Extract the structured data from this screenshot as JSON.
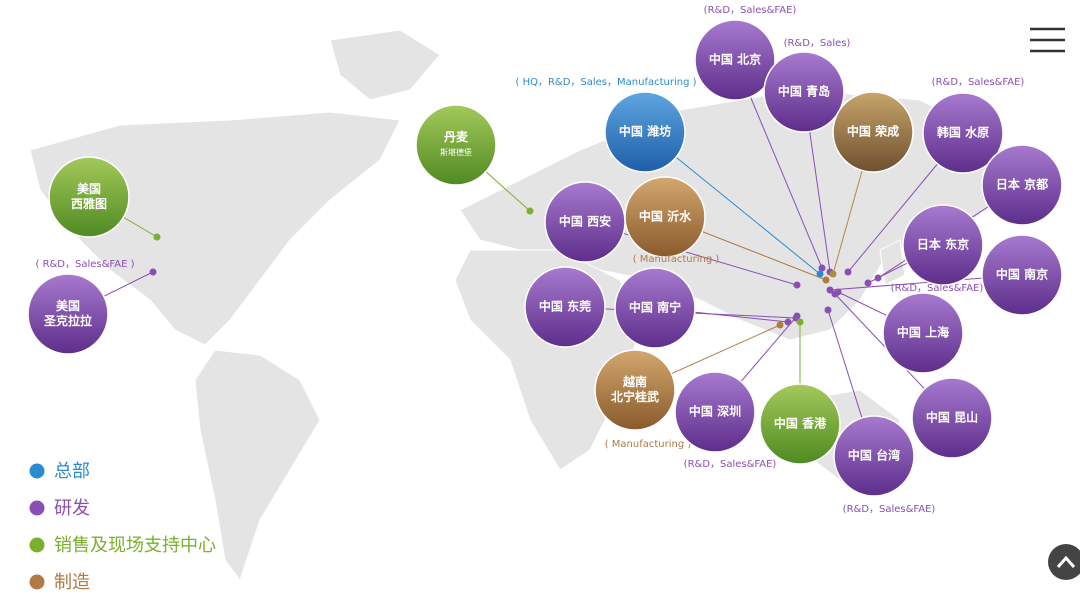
{
  "locations": [
    {
      "lines": [
        "中国 北京"
      ],
      "note": "(R&D，Sales&FAE)"
    },
    {
      "lines": [
        "中国 青岛"
      ],
      "note": "(R&D，Sales)"
    },
    {
      "lines": [
        "中国 潍坊"
      ],
      "note": "( HQ，R&D，Sales，Manufacturing )"
    },
    {
      "lines": [
        "中国 荣成"
      ]
    },
    {
      "lines": [
        "韩国 水原"
      ],
      "note": "(R&D，Sales&FAE)"
    },
    {
      "lines": [
        "日本 京都"
      ]
    },
    {
      "lines": [
        "丹麦",
        "斯堪德堡"
      ]
    },
    {
      "lines": [
        "美国",
        "西雅图"
      ]
    },
    {
      "lines": [
        "美国",
        "圣克拉拉"
      ],
      "note": "( R&D，Sales&FAE )"
    },
    {
      "lines": [
        "中国 西安"
      ]
    },
    {
      "lines": [
        "中国 沂水"
      ],
      "note": "( Manufacturing )"
    },
    {
      "lines": [
        "日本 东京"
      ],
      "note": "(R&D，Sales&FAE)"
    },
    {
      "lines": [
        "中国 南京"
      ]
    },
    {
      "lines": [
        "中国 东莞"
      ]
    },
    {
      "lines": [
        "中国 南宁"
      ]
    },
    {
      "lines": [
        "中国 上海"
      ]
    },
    {
      "lines": [
        "越南",
        "北宁桂武"
      ],
      "note": "( Manufacturing )"
    },
    {
      "lines": [
        "中国 深圳"
      ],
      "note": "(R&D，Sales&FAE)"
    },
    {
      "lines": [
        "中国 香港"
      ]
    },
    {
      "lines": [
        "中国 台湾"
      ],
      "note": "(R&D，Sales&FAE)"
    },
    {
      "lines": [
        "中国 昆山"
      ]
    }
  ],
  "legend": [
    "总部",
    "研发",
    "销售及现场支持中心",
    "制造"
  ]
}
